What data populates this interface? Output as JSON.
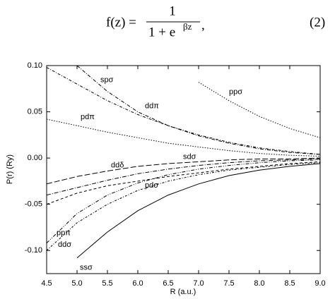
{
  "equation": {
    "lhs": "f(z) =",
    "numerator": "1",
    "denominator": "1 + e",
    "exponent": "βz",
    "trailing": ",",
    "number": "(2)"
  },
  "chart_data": {
    "type": "line",
    "x_label": "R (a.u.)",
    "y_label": "P(r) (Ry)",
    "x": [
      4.5,
      5.0,
      5.5,
      6.0,
      6.5,
      7.0,
      7.5,
      8.0,
      8.5,
      9.0
    ],
    "xlim": [
      4.5,
      9.0
    ],
    "xticks": [
      4.5,
      {
        "value": 5,
        "label": "5.0"
      },
      5.5,
      {
        "value": 6,
        "label": "6.0"
      },
      6.5,
      {
        "value": 7,
        "label": "7.0"
      },
      7.5,
      {
        "value": 8,
        "label": "8.0"
      },
      8.5,
      {
        "value": 9,
        "label": "9.0"
      }
    ],
    "ylim": [
      -0.125,
      0.1
    ],
    "yticks": [
      {
        "value": 0.1,
        "label": "0.10"
      },
      {
        "value": 0.05,
        "label": "0.05"
      },
      {
        "value": 0,
        "label": "0.00"
      },
      {
        "value": -0.05,
        "label": "-0.05"
      },
      {
        "value": -0.1,
        "label": "-0.10"
      }
    ],
    "grid": false,
    "series": [
      {
        "name": "ppσ",
        "color": "#000",
        "dash": "1.5,2",
        "values": [
          null,
          null,
          null,
          null,
          null,
          0.082,
          0.062,
          0.045,
          0.032,
          0.022
        ]
      },
      {
        "name": "spσ",
        "color": "#000",
        "dash": "5,2,1,2",
        "values": [
          null,
          0.1,
          0.072,
          0.05,
          0.035,
          0.024,
          0.016,
          0.01,
          0.006,
          0.004
        ]
      },
      {
        "name": "ddπ",
        "color": "#000",
        "dash": "4,2,1,2",
        "values": [
          0.098,
          0.08,
          0.062,
          0.047,
          0.035,
          0.025,
          0.017,
          0.011,
          0.007,
          0.004
        ]
      },
      {
        "name": "pdπ",
        "color": "#000",
        "dash": "1.5,2",
        "values": [
          0.042,
          0.035,
          0.028,
          0.022,
          0.016,
          0.012,
          0.008,
          0.005,
          0.003,
          0.002
        ]
      },
      {
        "name": "ddδ",
        "color": "#000",
        "dash": "8,3",
        "values": [
          -0.028,
          -0.02,
          -0.014,
          -0.009,
          -0.006,
          -0.004,
          -0.002,
          -0.001,
          -0.001,
          0
        ]
      },
      {
        "name": "sdσ",
        "color": "#000",
        "dash": "6,2,1,2",
        "values": [
          -0.04,
          -0.032,
          -0.024,
          -0.017,
          -0.012,
          -0.008,
          -0.005,
          -0.003,
          -0.002,
          -0.001
        ]
      },
      {
        "name": "pdσ",
        "color": "#000",
        "dash": "4,3",
        "values": [
          -0.05,
          -0.038,
          -0.03,
          -0.025,
          -0.02,
          -0.016,
          -0.012,
          -0.009,
          -0.006,
          -0.004
        ]
      },
      {
        "name": "ppπ",
        "color": "#000",
        "dash": "5,2,1,2,1,2",
        "values": [
          -0.092,
          -0.06,
          -0.04,
          -0.027,
          -0.018,
          -0.012,
          -0.008,
          -0.005,
          -0.003,
          -0.002
        ]
      },
      {
        "name": "ddσ",
        "color": "#000",
        "dash": "3,2,1,2",
        "values": [
          -0.1,
          -0.07,
          -0.05,
          -0.035,
          -0.025,
          -0.018,
          -0.013,
          -0.01,
          -0.007,
          -0.005
        ]
      },
      {
        "name": "ssσ",
        "color": "#000",
        "dash": "none",
        "values": [
          null,
          -0.108,
          -0.08,
          -0.057,
          -0.04,
          -0.028,
          -0.019,
          -0.013,
          -0.009,
          -0.006
        ]
      }
    ]
  }
}
